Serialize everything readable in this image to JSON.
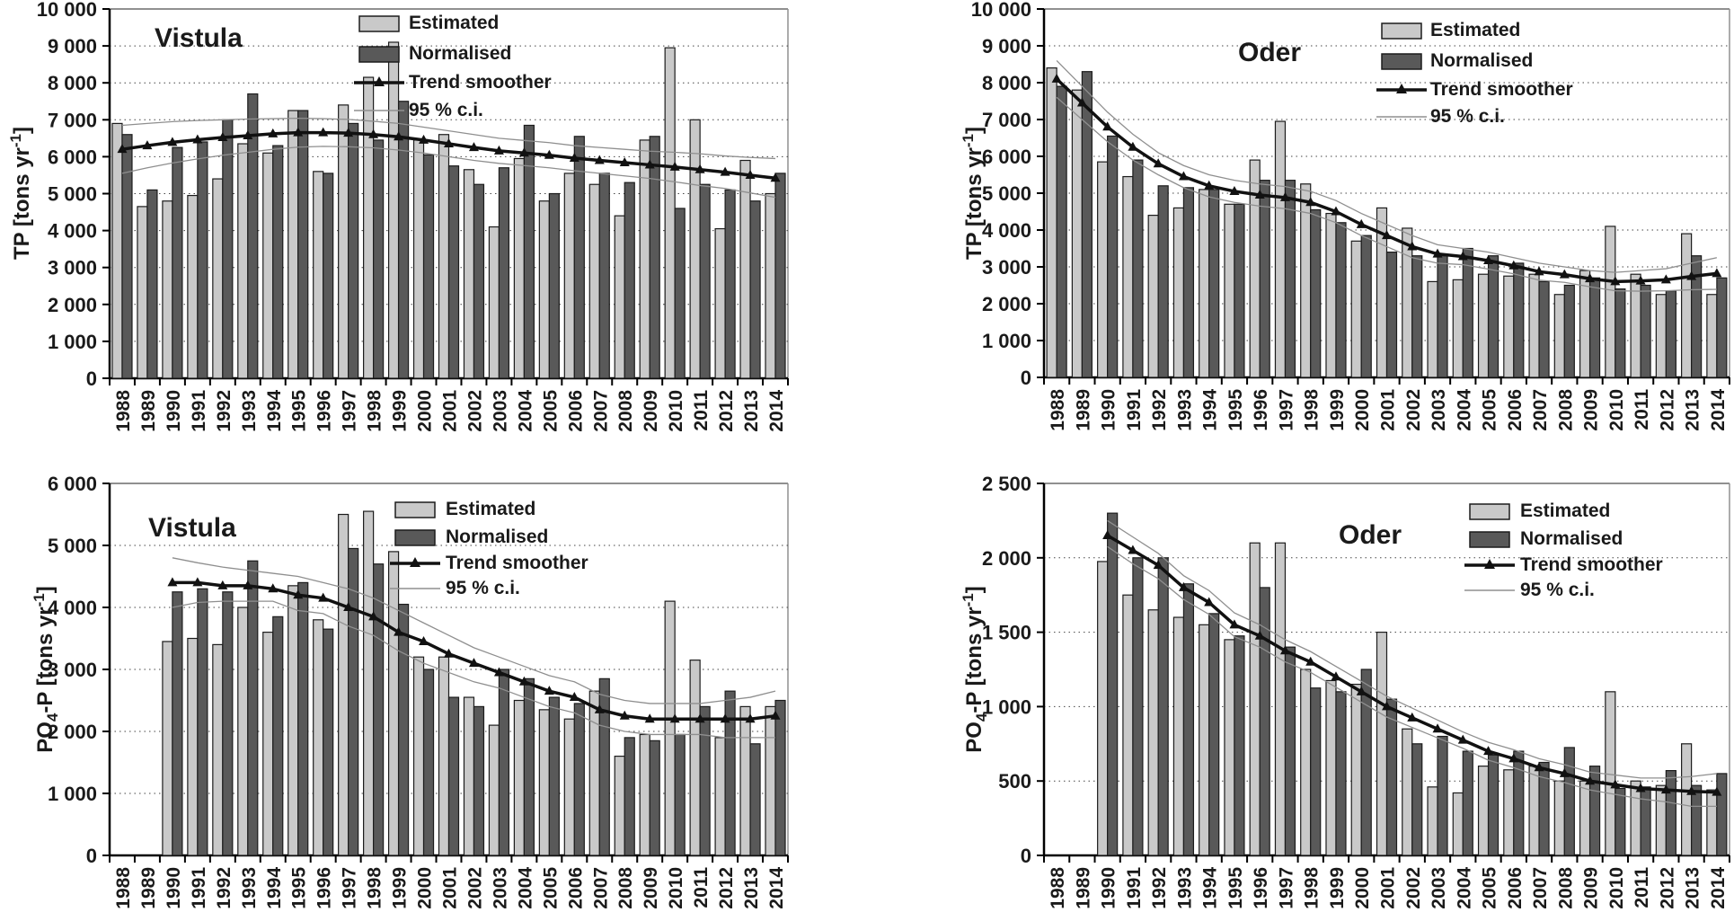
{
  "figure": {
    "legend_labels": [
      "Estimated",
      "Normalised",
      "Trend smoother",
      "95 % c.i."
    ],
    "colors": {
      "estimated_fill": "#c9c9c9",
      "normalised_fill": "#595959",
      "bar_border": "#1c1c1c",
      "trend_line": "#111111",
      "ci_line": "#8f8f8f",
      "gridline": "#444444",
      "axis": "#000000",
      "frame": "#909090",
      "text": "#1a1a1a"
    }
  },
  "chart_data": [
    {
      "type": "bar",
      "id": "vistula-tp",
      "title": "Vistula",
      "ylabel": {
        "base": "TP",
        "sub": "",
        "post": "",
        "unit": " [tons yr",
        "sup": "-1",
        "close": "]"
      },
      "ylabel_text": "TP [tons yr-1]",
      "ylim": [
        0,
        10000
      ],
      "ytick_step": 1000,
      "ytick_labels": [
        "0",
        "1 000",
        "2 000",
        "3 000",
        "4 000",
        "5 000",
        "6 000",
        "7 000",
        "8 000",
        "9 000",
        "10 000"
      ],
      "grid": "dotted horizontal",
      "legend_position": "top-center",
      "categories": [
        "1988",
        "1989",
        "1990",
        "1991",
        "1992",
        "1993",
        "1994",
        "1995",
        "1996",
        "1997",
        "1998",
        "1999",
        "2000",
        "2001",
        "2002",
        "2003",
        "2004",
        "2005",
        "2006",
        "2007",
        "2008",
        "2009",
        "2010",
        "2011",
        "2012",
        "2013",
        "2014"
      ],
      "series": [
        {
          "name": "Estimated",
          "values": [
            6900,
            4650,
            4800,
            4950,
            5400,
            6350,
            6100,
            7250,
            5600,
            7400,
            8150,
            9100,
            6450,
            6600,
            5650,
            4100,
            5950,
            4800,
            5550,
            5250,
            4400,
            6450,
            8950,
            7000,
            4050,
            5900,
            5000
          ]
        },
        {
          "name": "Normalised",
          "values": [
            6600,
            5100,
            6250,
            6400,
            7000,
            7700,
            6300,
            7250,
            5550,
            6900,
            6450,
            7500,
            6050,
            5750,
            5250,
            5700,
            6850,
            5000,
            6550,
            5550,
            5300,
            6550,
            4600,
            5250,
            5100,
            4800,
            5550
          ]
        },
        {
          "name": "Trend smoother",
          "values": [
            6200,
            6300,
            6390,
            6460,
            6520,
            6570,
            6620,
            6650,
            6650,
            6640,
            6600,
            6540,
            6450,
            6350,
            6250,
            6160,
            6100,
            6040,
            5960,
            5900,
            5840,
            5780,
            5720,
            5650,
            5580,
            5500,
            5420
          ]
        },
        {
          "name": "95 % c.i. upper",
          "values": [
            6850,
            6900,
            6950,
            6980,
            7000,
            7020,
            7030,
            7040,
            7030,
            7010,
            6960,
            6900,
            6800,
            6700,
            6600,
            6500,
            6440,
            6380,
            6300,
            6250,
            6200,
            6150,
            6120,
            6080,
            6020,
            5980,
            5950
          ]
        },
        {
          "name": "95 % c.i. lower",
          "values": [
            5550,
            5700,
            5830,
            5940,
            6040,
            6120,
            6200,
            6260,
            6280,
            6270,
            6240,
            6180,
            6100,
            6000,
            5900,
            5820,
            5760,
            5700,
            5620,
            5550,
            5480,
            5410,
            5320,
            5220,
            5140,
            5020,
            4900
          ]
        }
      ]
    },
    {
      "type": "bar",
      "id": "oder-tp",
      "title": "Oder",
      "ylabel": {
        "base": "TP",
        "sub": "",
        "post": "",
        "unit": " [tons yr",
        "sup": "-1",
        "close": "]"
      },
      "ylabel_text": "TP [tons yr-1]",
      "ylim": [
        0,
        10000
      ],
      "ytick_step": 1000,
      "ytick_labels": [
        "0",
        "1 000",
        "2 000",
        "3 000",
        "4 000",
        "5 000",
        "6 000",
        "7 000",
        "8 000",
        "9 000",
        "10 000"
      ],
      "grid": "dotted horizontal",
      "legend_position": "top-right",
      "categories": [
        "1988",
        "1989",
        "1990",
        "1991",
        "1992",
        "1993",
        "1994",
        "1995",
        "1996",
        "1997",
        "1998",
        "1999",
        "2000",
        "2001",
        "2002",
        "2003",
        "2004",
        "2005",
        "2006",
        "2007",
        "2008",
        "2009",
        "2010",
        "2011",
        "2012",
        "2013",
        "2014"
      ],
      "series": [
        {
          "name": "Estimated",
          "values": [
            8400,
            7800,
            5850,
            5450,
            4400,
            4600,
            5100,
            4700,
            5900,
            6950,
            5250,
            4450,
            3700,
            4600,
            4050,
            2600,
            2650,
            2800,
            2750,
            2800,
            2250,
            2900,
            4100,
            2800,
            2250,
            3900,
            2250
          ]
        },
        {
          "name": "Normalised",
          "values": [
            7900,
            8300,
            6550,
            5900,
            5200,
            5150,
            5100,
            4700,
            5350,
            5350,
            4550,
            4200,
            3850,
            3400,
            3300,
            3300,
            3500,
            3300,
            3100,
            2600,
            2500,
            2700,
            2400,
            2500,
            2350,
            3300,
            2700
          ]
        },
        {
          "name": "Trend smoother",
          "values": [
            8100,
            7450,
            6800,
            6250,
            5800,
            5450,
            5200,
            5050,
            4950,
            4880,
            4750,
            4500,
            4150,
            3850,
            3550,
            3350,
            3280,
            3170,
            3030,
            2870,
            2790,
            2680,
            2600,
            2620,
            2650,
            2740,
            2820
          ]
        },
        {
          "name": "95 % c.i. upper",
          "values": [
            8600,
            7900,
            7200,
            6600,
            6100,
            5750,
            5500,
            5350,
            5250,
            5180,
            5050,
            4800,
            4450,
            4150,
            3850,
            3600,
            3500,
            3400,
            3250,
            3100,
            3000,
            2900,
            2850,
            2900,
            2950,
            3100,
            3250
          ]
        },
        {
          "name": "95 % c.i. lower",
          "values": [
            7600,
            7000,
            6400,
            5900,
            5500,
            5150,
            4900,
            4750,
            4650,
            4580,
            4450,
            4200,
            3850,
            3550,
            3250,
            3100,
            3060,
            2940,
            2810,
            2640,
            2580,
            2460,
            2350,
            2340,
            2350,
            2380,
            2390
          ]
        }
      ]
    },
    {
      "type": "bar",
      "id": "vistula-po4p",
      "title": "Vistula",
      "ylabel": {
        "base": "PO",
        "sub": "4",
        "post": "-P",
        "unit": " [tons yr",
        "sup": "-1",
        "close": "]"
      },
      "ylabel_text": "PO4-P [tons yr-1]",
      "ylim": [
        0,
        6000
      ],
      "ytick_step": 1000,
      "ytick_labels": [
        "0",
        "1 000",
        "2 000",
        "3 000",
        "4 000",
        "5 000",
        "6 000"
      ],
      "grid": "dotted horizontal",
      "legend_position": "top-center",
      "categories": [
        "1988",
        "1989",
        "1990",
        "1991",
        "1992",
        "1993",
        "1994",
        "1995",
        "1996",
        "1997",
        "1998",
        "1999",
        "2000",
        "2001",
        "2002",
        "2003",
        "2004",
        "2005",
        "2006",
        "2007",
        "2008",
        "2009",
        "2010",
        "2011",
        "2012",
        "2013",
        "2014"
      ],
      "series": [
        {
          "name": "Estimated",
          "values": [
            null,
            null,
            3450,
            3500,
            3400,
            4000,
            3600,
            4350,
            3800,
            5500,
            5550,
            4900,
            3200,
            3200,
            2550,
            2100,
            2500,
            2350,
            2200,
            2650,
            1600,
            1950,
            4100,
            3150,
            1900,
            2400,
            2400
          ]
        },
        {
          "name": "Normalised",
          "values": [
            null,
            null,
            4250,
            4300,
            4250,
            4750,
            3850,
            4400,
            3650,
            4950,
            4700,
            4050,
            3000,
            2550,
            2400,
            3000,
            2850,
            2550,
            2450,
            2850,
            1900,
            1850,
            1950,
            2400,
            2650,
            1800,
            2500
          ]
        },
        {
          "name": "Trend smoother",
          "values": [
            null,
            null,
            4400,
            4400,
            4350,
            4350,
            4300,
            4200,
            4150,
            4000,
            3850,
            3600,
            3450,
            3250,
            3100,
            2950,
            2800,
            2650,
            2550,
            2350,
            2250,
            2200,
            2200,
            2200,
            2200,
            2200,
            2250
          ]
        },
        {
          "name": "95 % c.i. upper",
          "values": [
            null,
            null,
            4800,
            4720,
            4650,
            4600,
            4550,
            4500,
            4400,
            4300,
            4150,
            3950,
            3750,
            3550,
            3350,
            3200,
            3050,
            2900,
            2800,
            2600,
            2500,
            2450,
            2450,
            2450,
            2500,
            2550,
            2650
          ]
        },
        {
          "name": "95 % c.i. lower",
          "values": [
            null,
            null,
            4000,
            4080,
            4100,
            4100,
            4100,
            3950,
            3900,
            3700,
            3550,
            3300,
            3100,
            2950,
            2800,
            2700,
            2550,
            2400,
            2300,
            2100,
            2000,
            1950,
            1950,
            1950,
            1900,
            1900,
            1900
          ]
        }
      ]
    },
    {
      "type": "bar",
      "id": "oder-po4p",
      "title": "Oder",
      "ylabel": {
        "base": "PO",
        "sub": "4",
        "post": "-P",
        "unit": " [tons yr",
        "sup": "-1",
        "close": "]"
      },
      "ylabel_text": "PO4-P [tons yr-1]",
      "ylim": [
        0,
        2500
      ],
      "ytick_step": 500,
      "ytick_labels": [
        "0",
        "500",
        "1 000",
        "1 500",
        "2 000",
        "2 500"
      ],
      "grid": "dotted horizontal",
      "legend_position": "top-right",
      "categories": [
        "1988",
        "1989",
        "1990",
        "1991",
        "1992",
        "1993",
        "1994",
        "1995",
        "1996",
        "1997",
        "1998",
        "1999",
        "2000",
        "2001",
        "2002",
        "2003",
        "2004",
        "2005",
        "2006",
        "2007",
        "2008",
        "2009",
        "2010",
        "2011",
        "2012",
        "2013",
        "2014"
      ],
      "series": [
        {
          "name": "Estimated",
          "values": [
            null,
            null,
            1975,
            1750,
            1650,
            1600,
            1550,
            1450,
            2100,
            2100,
            1250,
            1175,
            1150,
            1500,
            850,
            460,
            420,
            600,
            575,
            600,
            500,
            500,
            1100,
            500,
            470,
            750,
            440
          ]
        },
        {
          "name": "Normalised",
          "values": [
            null,
            null,
            2300,
            2000,
            2000,
            1825,
            1625,
            1475,
            1800,
            1400,
            1125,
            1100,
            1250,
            1050,
            750,
            800,
            700,
            675,
            700,
            625,
            725,
            600,
            450,
            460,
            570,
            470,
            550
          ]
        },
        {
          "name": "Trend smoother",
          "values": [
            null,
            null,
            2150,
            2050,
            1950,
            1800,
            1700,
            1550,
            1475,
            1375,
            1300,
            1200,
            1100,
            1000,
            925,
            850,
            775,
            700,
            650,
            590,
            550,
            500,
            475,
            450,
            440,
            430,
            425
          ]
        },
        {
          "name": "95 % c.i. upper",
          "values": [
            null,
            null,
            2250,
            2140,
            2030,
            1880,
            1780,
            1630,
            1550,
            1450,
            1370,
            1270,
            1170,
            1070,
            990,
            910,
            830,
            760,
            710,
            650,
            610,
            560,
            540,
            520,
            520,
            530,
            550
          ]
        },
        {
          "name": "95 % c.i. lower",
          "values": [
            null,
            null,
            2075,
            1960,
            1860,
            1720,
            1620,
            1470,
            1400,
            1300,
            1230,
            1130,
            1030,
            930,
            860,
            790,
            720,
            640,
            590,
            530,
            490,
            440,
            410,
            380,
            360,
            330,
            330
          ]
        }
      ]
    }
  ]
}
